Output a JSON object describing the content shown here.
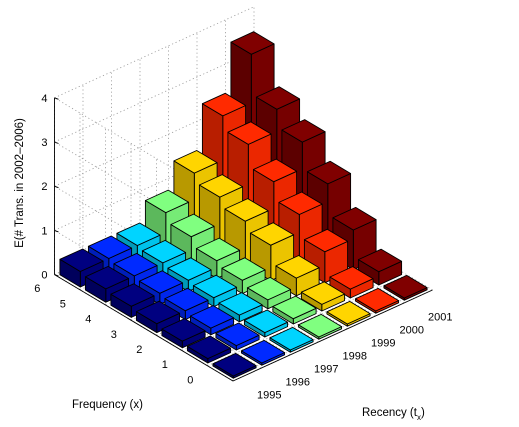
{
  "chart_data": {
    "type": "bar3d",
    "zlabel": "E(# Trans. in 2002–2006)",
    "xlabel": "Recency (t",
    "xlabel_sub": "x",
    "xlabel_close": ")",
    "ylabel": "Frequency (x)",
    "recency_ticks": [
      "1995",
      "1996",
      "1997",
      "1998",
      "1999",
      "2000",
      "2001"
    ],
    "frequency_ticks": [
      "0",
      "1",
      "2",
      "3",
      "4",
      "5",
      "6"
    ],
    "z_ticks": [
      "0",
      "1",
      "2",
      "3",
      "4"
    ],
    "zlim": [
      0,
      4
    ],
    "grid": true,
    "colormap": "jet",
    "values_note": "values[frequency][recency], recency order 1995..2001",
    "values": [
      [
        0.05,
        0.05,
        0.05,
        0.05,
        0.05,
        0.05,
        0.05
      ],
      [
        0.1,
        0.1,
        0.1,
        0.12,
        0.15,
        0.2,
        0.3
      ],
      [
        0.15,
        0.15,
        0.15,
        0.2,
        0.4,
        0.7,
        0.9
      ],
      [
        0.2,
        0.2,
        0.2,
        0.3,
        0.8,
        1.2,
        1.6
      ],
      [
        0.25,
        0.25,
        0.25,
        0.4,
        1.0,
        1.6,
        2.2
      ],
      [
        0.3,
        0.3,
        0.3,
        0.6,
        1.2,
        2.1,
        2.6
      ],
      [
        0.35,
        0.35,
        0.35,
        0.8,
        1.4,
        2.4,
        3.5
      ]
    ]
  }
}
